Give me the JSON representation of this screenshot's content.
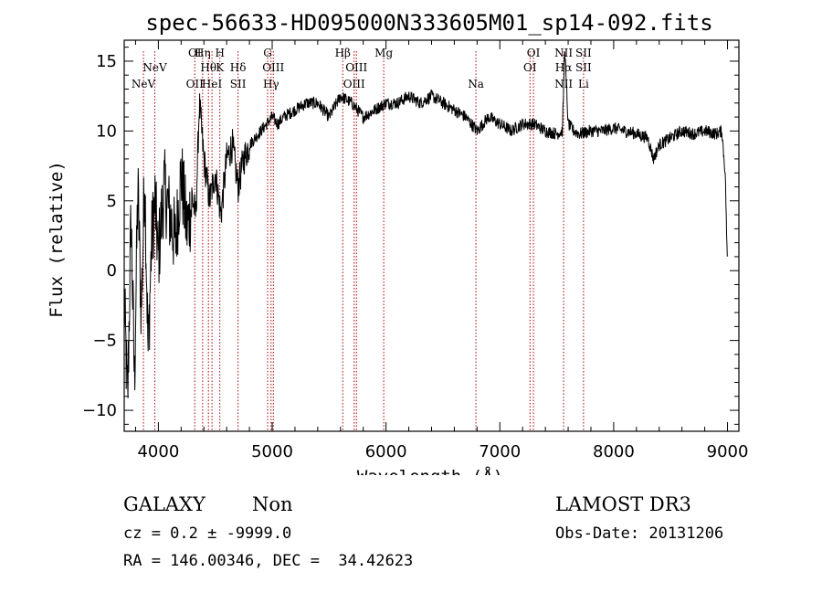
{
  "chart_data": {
    "type": "line",
    "title": "spec-56633-HD095000N333605M01_sp14-092.fits",
    "xlabel": "Wavelength (Å)",
    "ylabel": "Flux (relative)",
    "xlim": [
      3700,
      9100
    ],
    "ylim": [
      -11.5,
      16.5
    ],
    "xticks": [
      4000,
      5000,
      6000,
      7000,
      8000,
      9000
    ],
    "yticks": [
      -10,
      -5,
      0,
      5,
      10,
      15
    ],
    "xtick_labels": [
      "4000",
      "5000",
      "6000",
      "7000",
      "8000",
      "9000"
    ],
    "ytick_labels": [
      "−10",
      "−5",
      "0",
      "5",
      "10",
      "15"
    ],
    "series": [
      {
        "name": "flux",
        "x": [
          3700,
          3730,
          3760,
          3790,
          3820,
          3850,
          3880,
          3910,
          3940,
          3970,
          4000,
          4050,
          4100,
          4150,
          4200,
          4250,
          4300,
          4330,
          4360,
          4400,
          4450,
          4500,
          4550,
          4600,
          4650,
          4700,
          4750,
          4800,
          4850,
          4900,
          4950,
          5000,
          5050,
          5100,
          5200,
          5300,
          5400,
          5500,
          5600,
          5700,
          5800,
          5900,
          6000,
          6100,
          6200,
          6300,
          6400,
          6500,
          6600,
          6700,
          6800,
          6900,
          7000,
          7100,
          7200,
          7300,
          7400,
          7500,
          7550,
          7570,
          7600,
          7650,
          7700,
          7800,
          7900,
          8000,
          8100,
          8200,
          8300,
          8350,
          8400,
          8500,
          8600,
          8700,
          8800,
          8900,
          8950,
          8980,
          9000
        ],
        "y": [
          -2,
          -9.5,
          4,
          -8,
          6,
          -3,
          7,
          -6,
          2,
          5,
          1,
          6,
          4,
          2,
          7,
          3,
          5,
          4,
          12,
          8,
          5,
          7,
          4,
          8,
          9,
          6,
          8,
          9,
          9.5,
          10,
          10.5,
          11,
          10.5,
          11,
          11.5,
          12,
          12,
          11,
          12.5,
          12,
          11,
          11.5,
          12,
          12,
          12.5,
          12,
          12.5,
          12,
          11.5,
          11,
          10,
          11,
          10.5,
          10,
          10.5,
          10.5,
          10,
          9.8,
          10,
          16,
          10.5,
          10,
          9.8,
          10,
          10,
          10.2,
          10,
          9.8,
          9.5,
          8,
          9,
          9.5,
          10,
          9.8,
          10,
          9.8,
          10,
          7,
          0
        ]
      }
    ],
    "lines": [
      {
        "wl": 3869,
        "label": "NeV",
        "level": 2
      },
      {
        "wl": 3969,
        "label": "NeV",
        "level": 1
      },
      {
        "wl": 4320,
        "label": "OI",
        "level": 0
      },
      {
        "wl": 4320,
        "label": "OII",
        "level": 2
      },
      {
        "wl": 4389,
        "label": "Hη",
        "level": 0
      },
      {
        "wl": 4440,
        "label": "Hθ",
        "level": 1
      },
      {
        "wl": 4471,
        "label": "HeI",
        "level": 2
      },
      {
        "wl": 4540,
        "label": "H",
        "level": 0
      },
      {
        "wl": 4540,
        "label": "K",
        "level": 1
      },
      {
        "wl": 4700,
        "label": "Hδ",
        "level": 1
      },
      {
        "wl": 4700,
        "label": "SII",
        "level": 2
      },
      {
        "wl": 4960,
        "label": "G",
        "level": 0
      },
      {
        "wl": 5010,
        "label": "OIII",
        "level": 1
      },
      {
        "wl": 4990,
        "label": "Hγ",
        "level": 2
      },
      {
        "wl": 5620,
        "label": "Hβ",
        "level": 0
      },
      {
        "wl": 5740,
        "label": "OIII",
        "level": 1
      },
      {
        "wl": 5720,
        "label": "OIII",
        "level": 2
      },
      {
        "wl": 5980,
        "label": "Mg",
        "level": 0
      },
      {
        "wl": 6790,
        "label": "Na",
        "level": 2
      },
      {
        "wl": 7295,
        "label": "OI",
        "level": 0
      },
      {
        "wl": 7265,
        "label": "OI",
        "level": 1
      },
      {
        "wl": 7560,
        "label": "NII",
        "level": 0
      },
      {
        "wl": 7560,
        "label": "Hα",
        "level": 1
      },
      {
        "wl": 7560,
        "label": "NII",
        "level": 2
      },
      {
        "wl": 7735,
        "label": "SII",
        "level": 0
      },
      {
        "wl": 7735,
        "label": "SII",
        "level": 1
      },
      {
        "wl": 7735,
        "label": "Li",
        "level": 2
      }
    ]
  },
  "info": {
    "object_class": "GALAXY",
    "subclass": "Non",
    "survey": "LAMOST DR3",
    "cz_line": "cz = 0.2 ± -9999.0",
    "obs_date_line": "Obs-Date: 20131206",
    "coords_line": "RA = 146.00346, DEC =  34.42623"
  }
}
